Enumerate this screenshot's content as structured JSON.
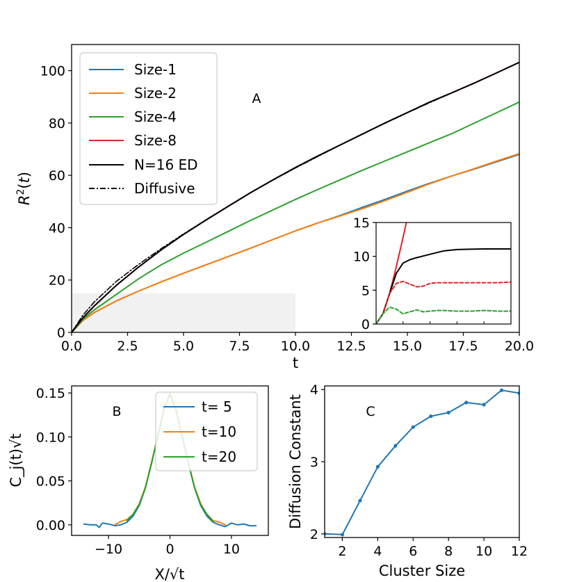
{
  "colors": {
    "blue": "#1f77b4",
    "orange": "#ff7f0e",
    "green": "#2ca02c",
    "red": "#d62728",
    "black": "#000000"
  },
  "chart_data": [
    {
      "id": "A",
      "type": "line",
      "panel_label": "A",
      "xlabel": "t",
      "ylabel": "R^2(t)",
      "xlim": [
        0,
        20
      ],
      "ylim": [
        0,
        110
      ],
      "xticks": [
        "0.0",
        "2.5",
        "5.0",
        "7.5",
        "10.0",
        "12.5",
        "15.0",
        "17.5",
        "20.0"
      ],
      "yticks": [
        "0",
        "20",
        "40",
        "60",
        "80",
        "100"
      ],
      "shaded_region": {
        "x": [
          0,
          10
        ],
        "y": [
          0,
          15
        ]
      },
      "legend_position": "upper-left",
      "legend": [
        "Size-1",
        "Size-2",
        "Size-4",
        "Size-8",
        "N=16 ED",
        "Diffusive"
      ],
      "series": [
        {
          "name": "Size-1",
          "color": "blue",
          "style": "solid",
          "x": [
            0,
            0.5,
            1,
            2,
            3,
            4,
            5,
            6,
            7,
            8,
            9,
            10,
            11,
            12,
            13,
            14,
            15,
            16,
            17,
            18,
            19,
            20
          ],
          "y": [
            0,
            4.5,
            7.5,
            12,
            15.8,
            19.3,
            22.6,
            25.8,
            29,
            32.2,
            35.5,
            38.8,
            41.8,
            44.7,
            47.8,
            50.8,
            54,
            57,
            59.8,
            62.4,
            65.2,
            68
          ]
        },
        {
          "name": "Size-2",
          "color": "orange",
          "style": "solid",
          "x": [
            0,
            0.5,
            1,
            2,
            3,
            4,
            5,
            6,
            7,
            8,
            9,
            10,
            11,
            12,
            13,
            14,
            15,
            16,
            17,
            18,
            19,
            20
          ],
          "y": [
            0,
            4.5,
            7.5,
            12,
            15.8,
            19.3,
            22.6,
            25.8,
            29,
            32.2,
            35.5,
            38.8,
            41.8,
            44.5,
            47.3,
            50.3,
            53.5,
            56.8,
            59.8,
            62.6,
            65.5,
            68.3
          ]
        },
        {
          "name": "Size-4",
          "color": "green",
          "style": "solid",
          "x": [
            0,
            0.5,
            1,
            2,
            3,
            4,
            5,
            6,
            7,
            8,
            9,
            10,
            11,
            12,
            13,
            14,
            15,
            16,
            17,
            18,
            19,
            20
          ],
          "y": [
            0,
            5,
            8.5,
            14.5,
            20.5,
            25.8,
            30.3,
            34.4,
            38.6,
            42.8,
            46.8,
            50.8,
            54.6,
            58.3,
            62,
            65.5,
            69,
            72.5,
            76,
            80,
            84,
            88
          ]
        },
        {
          "name": "Size-8",
          "color": "red",
          "style": "solid",
          "x": [
            0,
            0.5,
            1,
            2,
            3,
            4,
            5,
            6,
            7,
            8,
            9,
            10,
            11,
            12,
            13,
            14,
            15,
            16,
            17,
            18,
            19,
            20
          ],
          "y": [
            0,
            5.5,
            10,
            18,
            25,
            31.5,
            37.4,
            42.9,
            48.2,
            53.4,
            58.3,
            63,
            67.4,
            71.6,
            75.8,
            80,
            84,
            88,
            91.6,
            95.3,
            99.2,
            103.2
          ]
        },
        {
          "name": "N=16 ED",
          "color": "black",
          "style": "solid",
          "x": [
            0,
            0.5,
            1,
            2,
            3,
            4,
            5,
            6,
            7,
            8,
            9,
            10,
            11,
            12,
            13,
            14,
            15,
            16,
            17,
            18,
            19,
            20
          ],
          "y": [
            0,
            5.5,
            10,
            18,
            25,
            31.5,
            37.4,
            42.9,
            48.2,
            53.4,
            58.3,
            63,
            67.4,
            71.6,
            75.8,
            80,
            84,
            88,
            91.6,
            95.3,
            99.2,
            103.2
          ]
        },
        {
          "name": "Diffusive",
          "color": "black",
          "style": "dashdot",
          "x": [
            0,
            0.5,
            1,
            2,
            3,
            4,
            5,
            6,
            7,
            8,
            9,
            10,
            11,
            12,
            13,
            14,
            15,
            16,
            17,
            18,
            19,
            20
          ],
          "y": [
            0,
            6.5,
            11.5,
            19.5,
            26,
            32,
            37.6,
            43,
            48.2,
            53.4,
            58.2,
            62.8,
            67.2,
            71.6,
            75.8,
            79.9,
            83.9,
            87.8,
            91.6,
            95.3,
            99.2,
            103.2
          ]
        }
      ]
    },
    {
      "id": "A-inset",
      "type": "line",
      "xlim": [
        0,
        10
      ],
      "ylim": [
        0,
        15
      ],
      "yticks": [
        "0",
        "5",
        "10",
        "15"
      ],
      "series": [
        {
          "name": "Size-8",
          "color": "red",
          "style": "solid",
          "x": [
            0,
            0.5,
            1,
            1.5,
            2,
            2.3
          ],
          "y": [
            0,
            1.5,
            4.5,
            8.5,
            12.8,
            15.5
          ]
        },
        {
          "name": "N=16 ED",
          "color": "black",
          "style": "solid",
          "x": [
            0,
            0.5,
            1,
            1.5,
            2,
            2.5,
            3,
            4,
            5,
            6,
            7,
            8,
            9,
            10
          ],
          "y": [
            0,
            1.5,
            4.5,
            7.5,
            9,
            9.5,
            9.8,
            10.3,
            10.8,
            11,
            11.05,
            11.1,
            11.1,
            11.1
          ]
        },
        {
          "name": "Size-4",
          "color": "red",
          "style": "dashed",
          "x": [
            0,
            0.5,
            1,
            1.5,
            2,
            2.5,
            3,
            3.5,
            4,
            4.5,
            5,
            6,
            7,
            8,
            9,
            10
          ],
          "y": [
            0,
            1.5,
            4.5,
            6,
            6.3,
            5.9,
            5.5,
            5.6,
            6,
            6.1,
            6.1,
            6.1,
            6.1,
            6.1,
            6.1,
            6.2
          ]
        },
        {
          "name": "Size-2",
          "color": "green",
          "style": "dashed",
          "x": [
            0,
            0.5,
            1,
            1.5,
            2,
            2.5,
            3,
            3.5,
            4,
            4.5,
            5,
            6,
            7,
            8,
            9,
            10
          ],
          "y": [
            0,
            1.5,
            2.5,
            2.2,
            1.5,
            1.8,
            2.1,
            1.8,
            1.9,
            2,
            2,
            1.9,
            1.9,
            2,
            1.9,
            1.9
          ]
        }
      ]
    },
    {
      "id": "B",
      "type": "line",
      "panel_label": "B",
      "xlabel": "X/√t",
      "ylabel": "C_j(t)√t",
      "xlim": [
        -16,
        16
      ],
      "ylim": [
        -0.012,
        0.158
      ],
      "xticks": [
        "−10",
        "0",
        "10"
      ],
      "yticks": [
        "0.00",
        "0.05",
        "0.10",
        "0.15"
      ],
      "legend_position": "upper-right",
      "legend": [
        "t= 5",
        "t=10",
        "t=20"
      ],
      "series": [
        {
          "name": "t= 5",
          "color": "blue",
          "style": "solid",
          "x": [
            -14,
            -13,
            -12,
            -11.5,
            -11,
            -10,
            -9,
            -8,
            -7,
            -6,
            -5,
            -4,
            -3,
            -2,
            -1,
            0,
            1,
            2,
            3,
            4,
            5,
            6,
            7,
            8,
            9,
            10,
            11,
            12,
            13,
            14
          ],
          "y": [
            0.001,
            0.0,
            0.0,
            -0.003,
            0.002,
            0.001,
            -0.001,
            0.0,
            0.003,
            0.01,
            0.022,
            0.042,
            0.07,
            0.1,
            0.132,
            0.148,
            0.13,
            0.1,
            0.07,
            0.042,
            0.022,
            0.01,
            0.003,
            0.0,
            -0.002,
            0.002,
            0.0,
            0.001,
            -0.001,
            -0.001
          ]
        },
        {
          "name": "t=10",
          "color": "orange",
          "style": "solid",
          "x": [
            -9,
            -8,
            -7,
            -6,
            -5,
            -4,
            -3,
            -2,
            -1,
            0,
            1,
            2,
            3,
            4,
            5,
            6,
            7,
            8,
            9
          ],
          "y": [
            0.0,
            0.004,
            0.006,
            0.012,
            0.024,
            0.043,
            0.071,
            0.101,
            0.131,
            0.15,
            0.131,
            0.101,
            0.071,
            0.043,
            0.024,
            0.012,
            0.005,
            0.003,
            0.0
          ]
        },
        {
          "name": "t=20",
          "color": "green",
          "style": "solid",
          "x": [
            -7,
            -6,
            -5,
            -4,
            -3,
            -2,
            -1,
            0,
            1,
            2,
            3,
            4,
            5,
            6,
            7
          ],
          "y": [
            0.005,
            0.012,
            0.023,
            0.042,
            0.07,
            0.1,
            0.13,
            0.149,
            0.13,
            0.1,
            0.07,
            0.042,
            0.023,
            0.012,
            0.004
          ]
        }
      ]
    },
    {
      "id": "C",
      "type": "line",
      "panel_label": "C",
      "xlabel": "Cluster Size",
      "ylabel": "Diffusion Constant",
      "xlim": [
        1,
        12
      ],
      "ylim": [
        1.95,
        4.05
      ],
      "xticks": [
        "2",
        "4",
        "6",
        "8",
        "10",
        "12"
      ],
      "yticks": [
        "2",
        "3",
        "4"
      ],
      "series": [
        {
          "name": "Diffusion Constant",
          "color": "blue",
          "style": "solid-markers",
          "x": [
            1,
            2,
            3,
            4,
            5,
            6,
            7,
            8,
            9,
            10,
            11,
            12
          ],
          "y": [
            2.0,
            1.99,
            2.46,
            2.93,
            3.22,
            3.48,
            3.63,
            3.68,
            3.82,
            3.79,
            3.99,
            3.95
          ]
        }
      ]
    }
  ]
}
